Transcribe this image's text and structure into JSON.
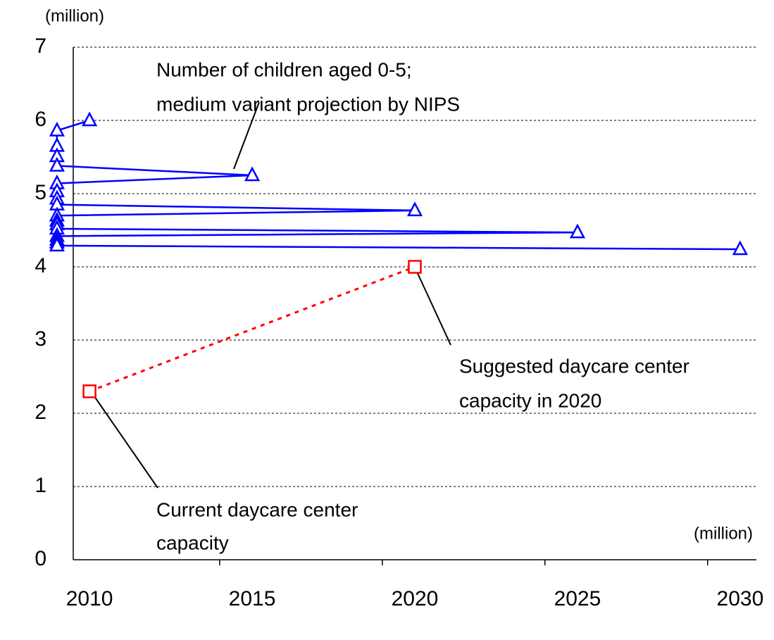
{
  "chart_data": {
    "type": "line",
    "y_label": "(million)",
    "categories": [
      "2010",
      null,
      null,
      null,
      null,
      "2015",
      null,
      null,
      null,
      null,
      "2020",
      null,
      null,
      null,
      null,
      "2025",
      null,
      null,
      null,
      null,
      "2030"
    ],
    "series": [
      {
        "name": "Number of children aged 0-5",
        "color": "#0000ff",
        "marker": "triangle",
        "line": "solid",
        "x": [
          "2010",
          "2011",
          "2012",
          "2013",
          "2014",
          "2015",
          "2016",
          "2017",
          "2018",
          "2019",
          "2020",
          "2021",
          "2022",
          "2023",
          "2024",
          "2025",
          "2026",
          "2027",
          "2028",
          "2029",
          "2030"
        ],
        "values": [
          6.0,
          5.86,
          5.65,
          5.51,
          5.38,
          5.25,
          5.14,
          5.03,
          4.93,
          4.85,
          4.77,
          4.7,
          4.63,
          4.58,
          4.52,
          4.47,
          4.42,
          4.37,
          4.33,
          4.29,
          4.24
        ]
      },
      {
        "name": "Daycare center capacity",
        "color": "#ff0000",
        "marker": "square",
        "line": "dotted",
        "x": [
          "2010",
          "2020"
        ],
        "values": [
          2.3,
          4.0
        ]
      }
    ],
    "ylim": [
      0,
      7
    ],
    "yticks": [
      0,
      1,
      2,
      3,
      4,
      5,
      6,
      7
    ],
    "grid": true,
    "annotations": [
      {
        "lines": [
          "Number of children aged 0-5;",
          "medium variant projection by NIPS"
        ]
      },
      {
        "lines": [
          "Suggested daycare center",
          "capacity in 2020"
        ]
      },
      {
        "lines": [
          "Current daycare center",
          "capacity"
        ]
      },
      {
        "lines": [
          "(million)"
        ]
      }
    ]
  }
}
